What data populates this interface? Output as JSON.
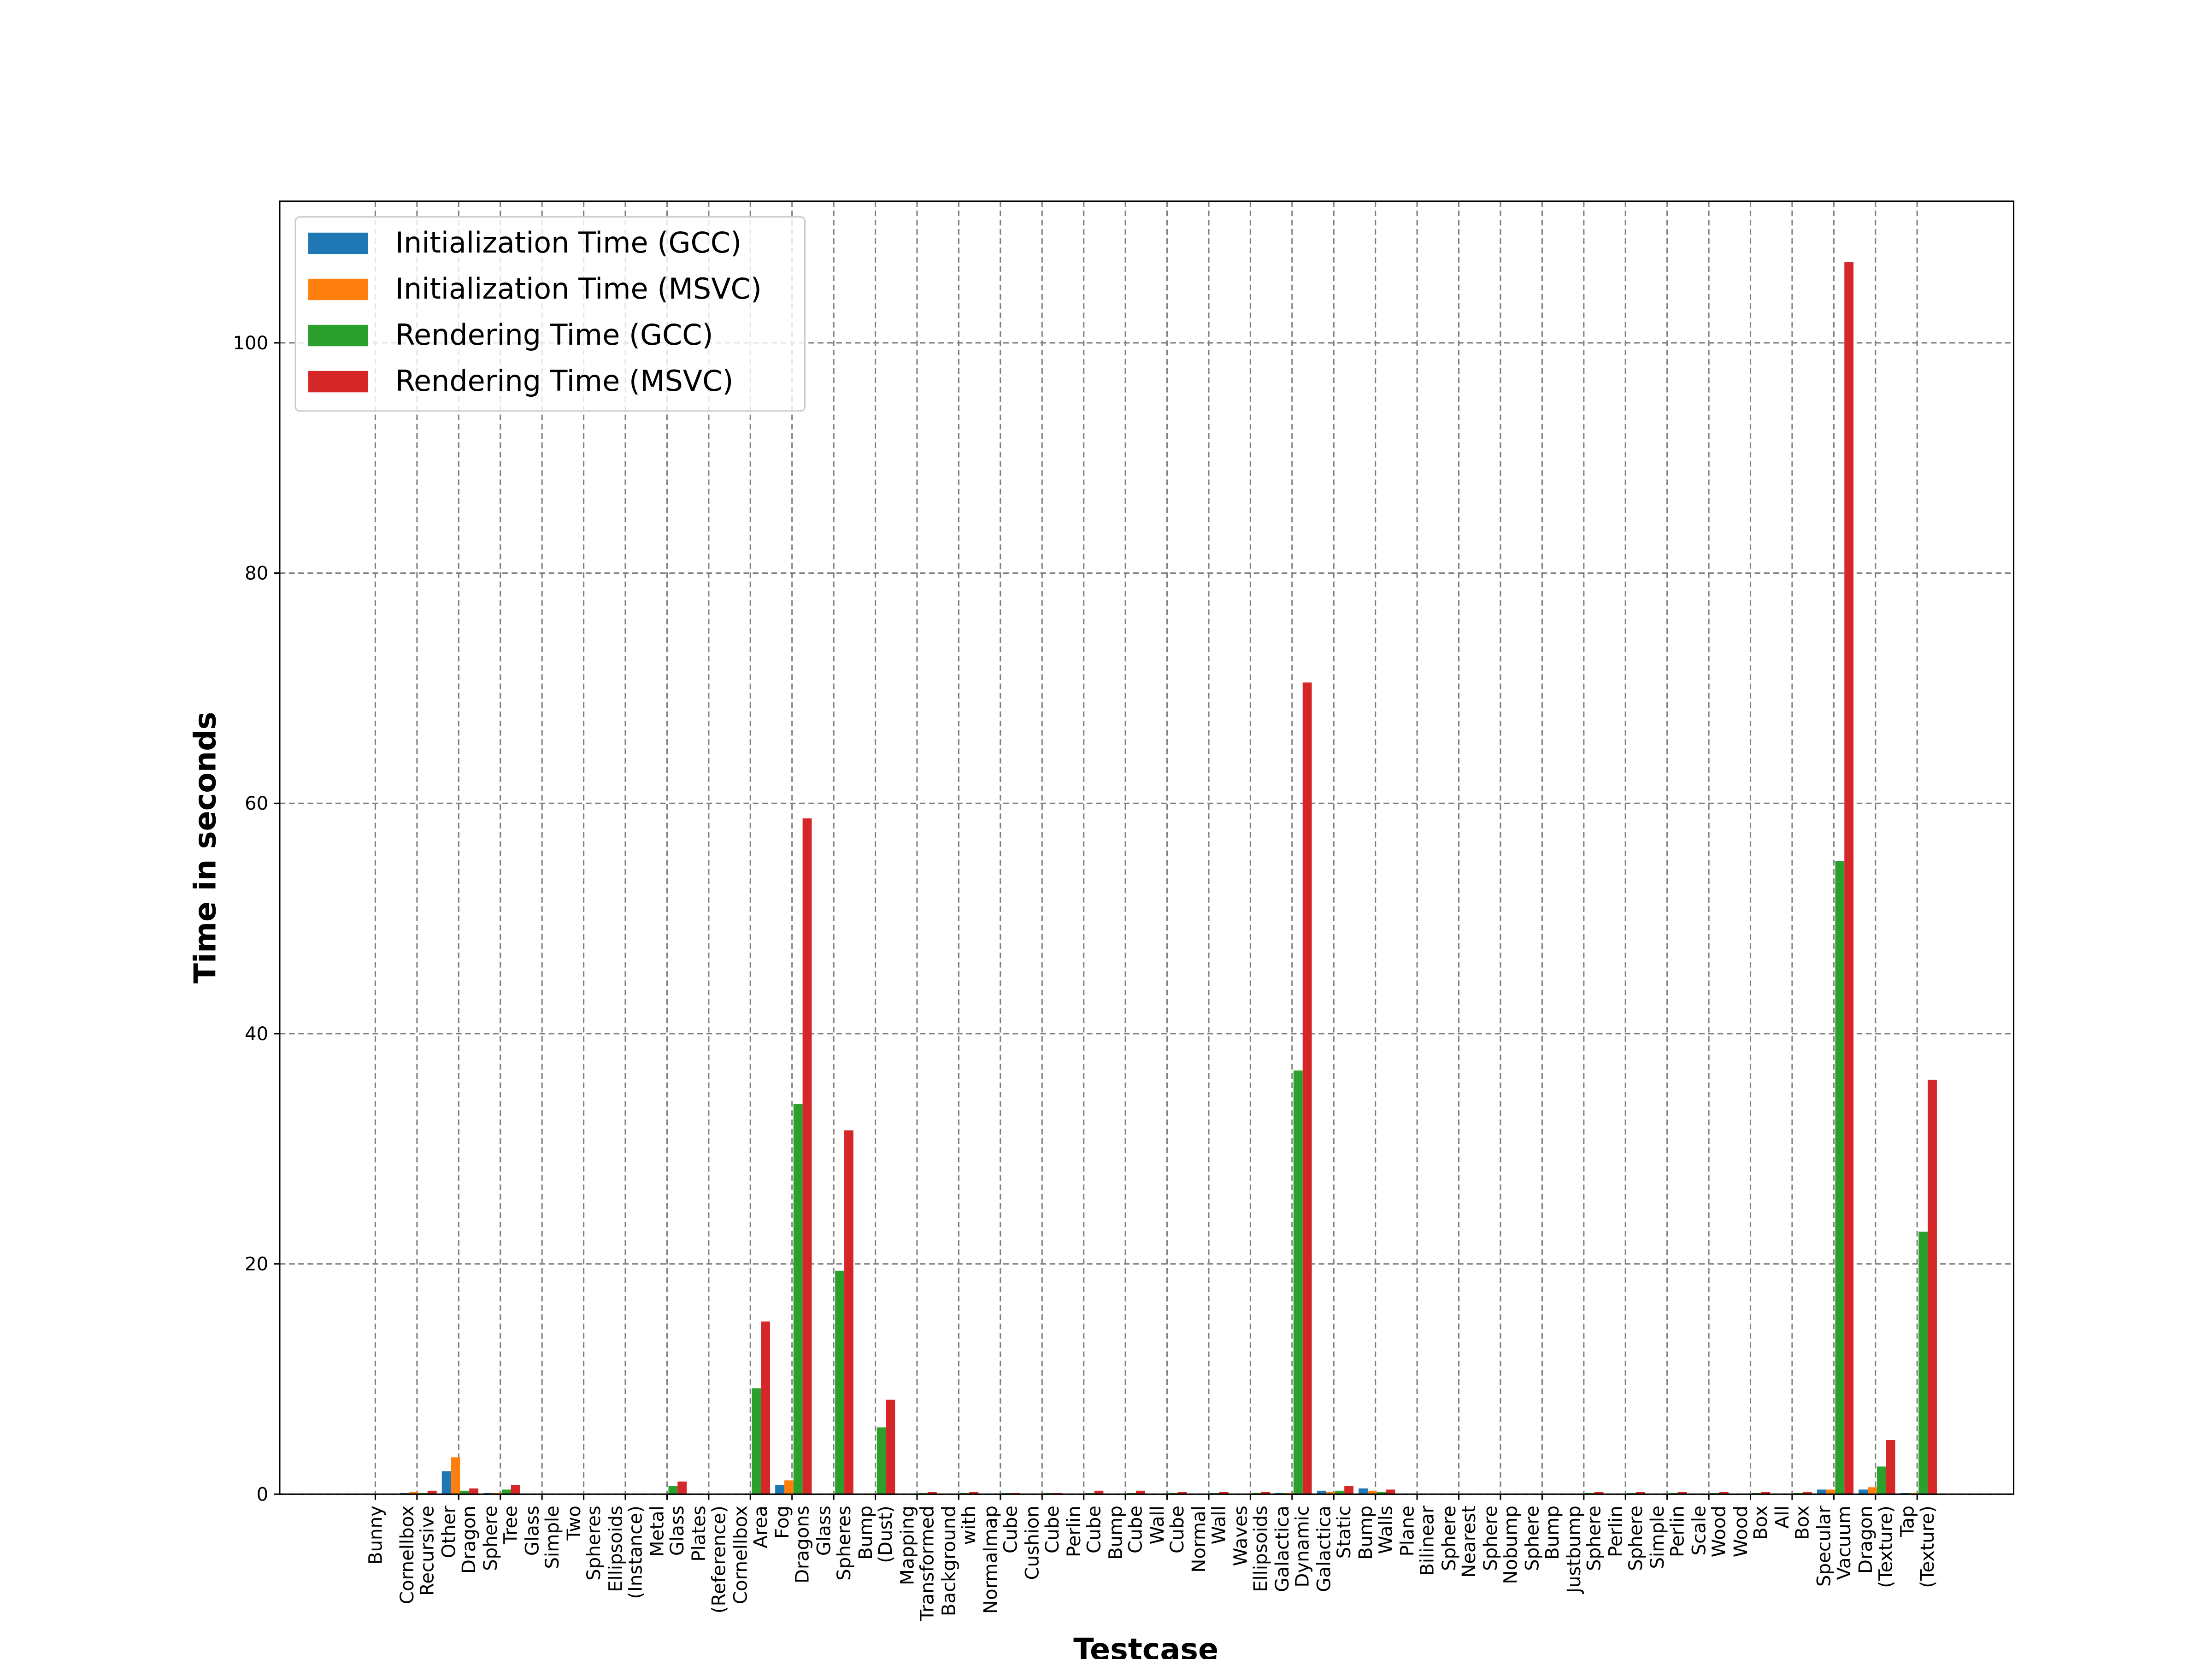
{
  "chart_data": {
    "type": "bar",
    "xlabel": "Testcase",
    "ylabel": "Time in seconds",
    "categories": [
      "Bunny",
      "Cornellbox Recursive",
      "Other Dragon",
      "Sphere Tree",
      "Glass Simple",
      "Two Spheres",
      "Ellipsoids (Instance)",
      "Metal Glass",
      "Plates (Reference)",
      "Cornellbox Area",
      "Fog Dragons",
      "Glass Spheres",
      "Bump (Dust)",
      "Mapping Transformed",
      "Background with",
      "Normalmap Cube",
      "Cushion Cube",
      "Perlin Cube",
      "Bump Cube",
      "Wall Cube",
      "Normal Wall",
      "Waves Ellipsoids",
      "Galactica Dynamic",
      "Galactica Static",
      "Bump Walls",
      "Plane Bilinear",
      "Sphere Nearest",
      "Sphere Nobump",
      "Sphere Bump",
      "Justbump Sphere",
      "Perlin Sphere",
      "Simple Perlin",
      "Scale Wood",
      "Wood Box",
      "All Box",
      "Specular Vacuum",
      "Dragon (Texture)",
      "Tap (Texture)"
    ],
    "series": [
      {
        "name": "Initialization Time (GCC)",
        "color": "#1f77b4",
        "values": [
          0,
          0.1,
          2.0,
          0.1,
          0,
          0,
          0,
          0,
          0,
          0,
          0.8,
          0,
          0,
          0,
          0,
          0,
          0,
          0,
          0,
          0,
          0,
          0,
          0.1,
          0.3,
          0.5,
          0,
          0,
          0,
          0,
          0,
          0,
          0,
          0,
          0,
          0,
          0.4,
          0.4,
          0.1
        ]
      },
      {
        "name": "Initialization Time (MSVC)",
        "color": "#ff7f0e",
        "values": [
          0,
          0.2,
          3.2,
          0.1,
          0,
          0,
          0,
          0,
          0,
          0,
          1.2,
          0,
          0,
          0,
          0,
          0,
          0,
          0,
          0,
          0,
          0,
          0,
          0.1,
          0.2,
          0.3,
          0,
          0,
          0,
          0,
          0,
          0,
          0,
          0,
          0,
          0,
          0.4,
          0.6,
          0.1
        ]
      },
      {
        "name": "Rendering Time (GCC)",
        "color": "#2ca02c",
        "values": [
          0,
          0.1,
          0.3,
          0.4,
          0,
          0,
          0,
          0.7,
          0,
          9.2,
          33.9,
          19.4,
          5.8,
          0.1,
          0.1,
          0.1,
          0.1,
          0.1,
          0.1,
          0.1,
          0.1,
          0.1,
          36.8,
          0.3,
          0.2,
          0,
          0,
          0,
          0,
          0.1,
          0.1,
          0.1,
          0.1,
          0.1,
          0.1,
          55.0,
          2.4,
          22.8
        ]
      },
      {
        "name": "Rendering Time (MSVC)",
        "color": "#d62728",
        "values": [
          0,
          0.3,
          0.5,
          0.8,
          0,
          0,
          0,
          1.1,
          0,
          15.0,
          58.7,
          31.6,
          8.2,
          0.2,
          0.2,
          0.1,
          0.1,
          0.3,
          0.3,
          0.2,
          0.2,
          0.2,
          70.5,
          0.7,
          0.4,
          0,
          0,
          0,
          0,
          0.2,
          0.2,
          0.2,
          0.2,
          0.2,
          0.2,
          107.0,
          4.7,
          36.0
        ]
      }
    ],
    "ylim": [
      0,
      112.3
    ],
    "yticks": [
      0,
      20,
      40,
      60,
      80,
      100
    ],
    "grid": true,
    "legend": "upper left"
  }
}
